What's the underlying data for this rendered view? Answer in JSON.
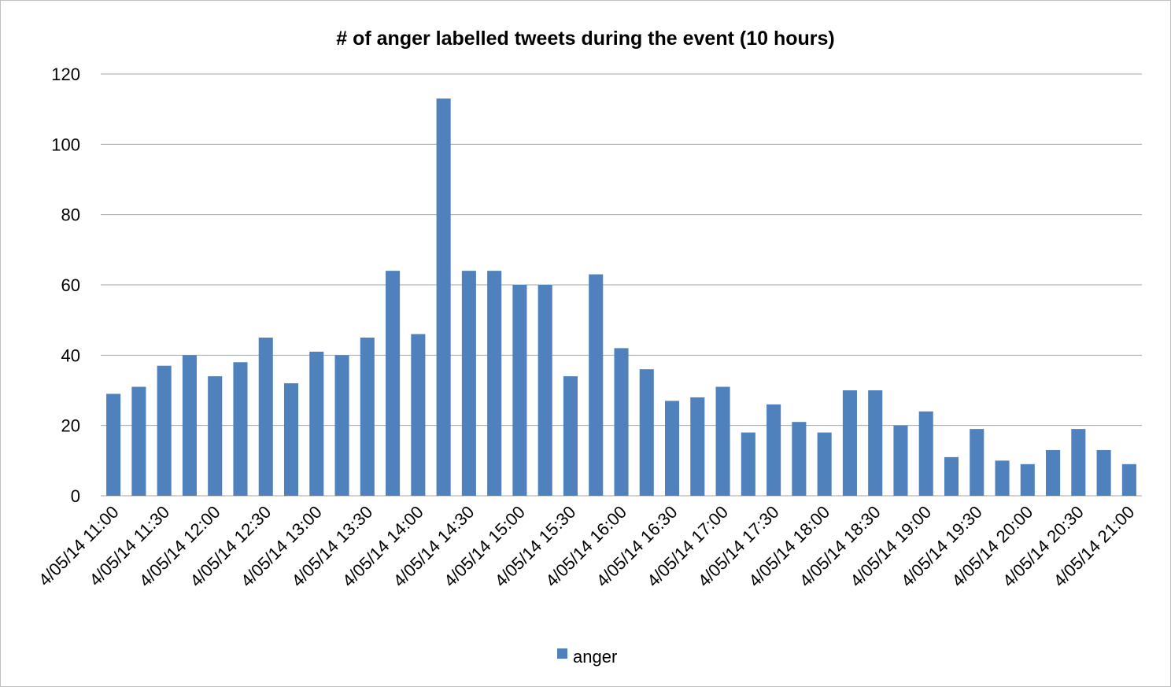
{
  "chart_data": {
    "type": "bar",
    "title": "# of anger labelled tweets during the event (10 hours)",
    "xlabel": "",
    "ylabel": "",
    "ylim": [
      0,
      120
    ],
    "yticks": [
      0,
      20,
      40,
      60,
      80,
      100,
      120
    ],
    "grid": true,
    "legend_position": "bottom",
    "bar_color": "#4f81bd",
    "categories": [
      "4/05/14 11:00",
      "4/05/14 11:15",
      "4/05/14 11:30",
      "4/05/14 11:45",
      "4/05/14 12:00",
      "4/05/14 12:15",
      "4/05/14 12:30",
      "4/05/14 12:45",
      "4/05/14 13:00",
      "4/05/14 13:15",
      "4/05/14 13:30",
      "4/05/14 13:45",
      "4/05/14 14:00",
      "4/05/14 14:15",
      "4/05/14 14:30",
      "4/05/14 14:45",
      "4/05/14 15:00",
      "4/05/14 15:15",
      "4/05/14 15:30",
      "4/05/14 15:45",
      "4/05/14 16:00",
      "4/05/14 16:15",
      "4/05/14 16:30",
      "4/05/14 16:45",
      "4/05/14 17:00",
      "4/05/14 17:15",
      "4/05/14 17:30",
      "4/05/14 17:45",
      "4/05/14 18:00",
      "4/05/14 18:15",
      "4/05/14 18:30",
      "4/05/14 18:45",
      "4/05/14 19:00",
      "4/05/14 19:15",
      "4/05/14 19:30",
      "4/05/14 19:45",
      "4/05/14 20:00",
      "4/05/14 20:15",
      "4/05/14 20:30",
      "4/05/14 20:45",
      "4/05/14 21:00"
    ],
    "shown_tick_labels": [
      "4/05/14 11:00",
      "4/05/14 11:30",
      "4/05/14 12:00",
      "4/05/14 12:30",
      "4/05/14 13:00",
      "4/05/14 13:30",
      "4/05/14 14:00",
      "4/05/14 14:30",
      "4/05/14 15:00",
      "4/05/14 15:30",
      "4/05/14 16:00",
      "4/05/14 16:30",
      "4/05/14 17:00",
      "4/05/14 17:30",
      "4/05/14 18:00",
      "4/05/14 18:30",
      "4/05/14 19:00",
      "4/05/14 19:30",
      "4/05/14 20:00",
      "4/05/14 20:30",
      "4/05/14 21:00"
    ],
    "series": [
      {
        "name": "anger",
        "values": [
          29,
          31,
          37,
          40,
          34,
          38,
          45,
          32,
          41,
          40,
          45,
          64,
          46,
          113,
          64,
          64,
          60,
          60,
          34,
          63,
          42,
          36,
          27,
          28,
          31,
          18,
          26,
          21,
          18,
          30,
          30,
          20,
          24,
          11,
          19,
          10,
          9,
          13,
          19,
          13,
          9
        ]
      }
    ]
  }
}
